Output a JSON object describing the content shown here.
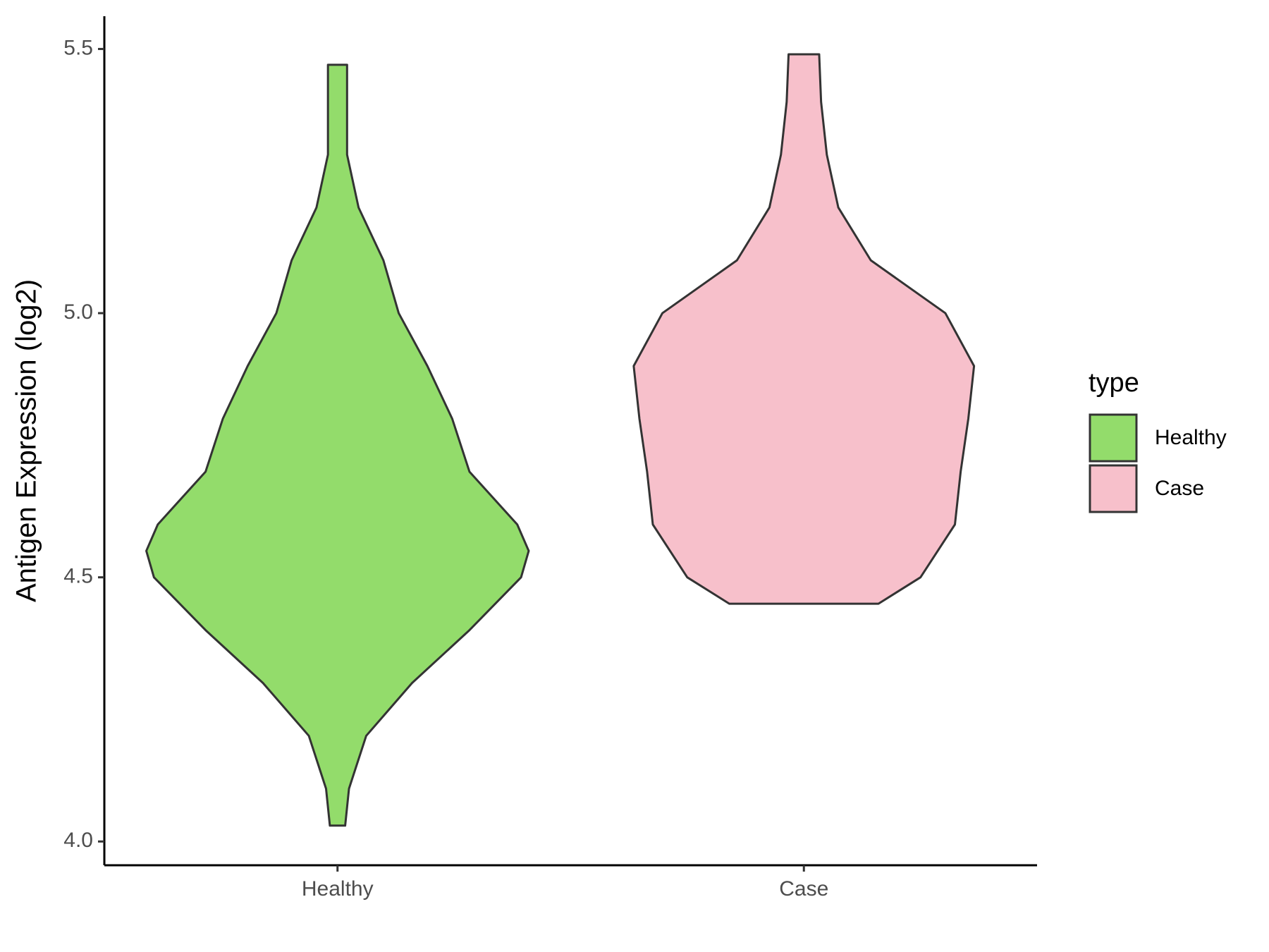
{
  "chart_data": {
    "type": "violin",
    "y_label": "Antigen Expression (log2)",
    "categories": [
      "Healthy",
      "Case"
    ],
    "series": [
      {
        "name": "Healthy",
        "color": "#93dc6b",
        "y": [
          4.03,
          4.1,
          4.2,
          4.3,
          4.4,
          4.5,
          4.55,
          4.6,
          4.7,
          4.8,
          4.9,
          5.0,
          5.1,
          5.2,
          5.3,
          5.4,
          5.47
        ],
        "density": [
          0.04,
          0.06,
          0.15,
          0.39,
          0.69,
          0.96,
          1,
          0.94,
          0.69,
          0.6,
          0.47,
          0.32,
          0.24,
          0.11,
          0.05,
          0.05,
          0.05
        ]
      },
      {
        "name": "Case",
        "color": "#f7c0cb",
        "y": [
          4.45,
          4.5,
          4.6,
          4.7,
          4.8,
          4.9,
          5.0,
          5.1,
          5.2,
          5.3,
          5.4,
          5.49
        ],
        "density": [
          0.39,
          0.61,
          0.79,
          0.82,
          0.86,
          0.89,
          0.74,
          0.35,
          0.18,
          0.12,
          0.09,
          0.08
        ]
      }
    ],
    "ylim": [
      3.955,
      5.562
    ],
    "yticks": [
      {
        "value": 4,
        "label": "4.0"
      },
      4.5,
      {
        "value": 5,
        "label": "5.0"
      },
      5.5
    ],
    "legend_title": "type",
    "legend": "right"
  }
}
